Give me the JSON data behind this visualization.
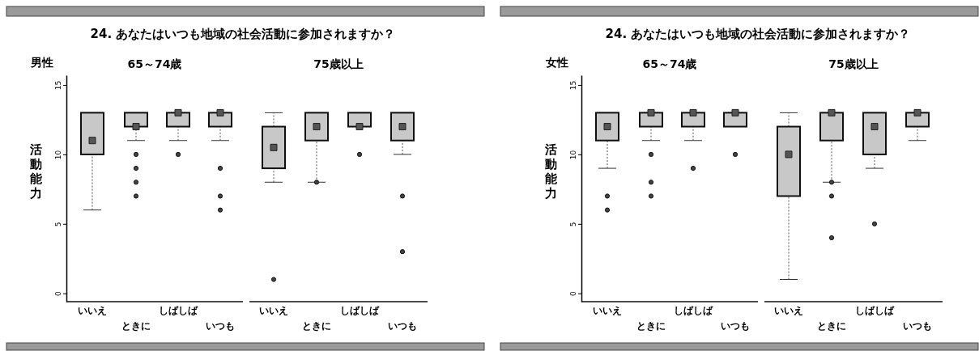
{
  "chart_data": [
    {
      "type": "box",
      "title": "24.  あなたはいつも地域の社会活動に参加されますか？",
      "ylabel": "活動能力",
      "annotations": [
        "男性",
        "65～74歳",
        "75歳以上"
      ],
      "categories": [
        "いいえ",
        "ときに",
        "しばしば",
        "いつも",
        "いいえ",
        "ときに",
        "しばしば",
        "いつも"
      ],
      "color": "#c8c8c8",
      "ylim": [
        -0.6,
        15.7
      ],
      "yticks": [
        0,
        5,
        10,
        15
      ],
      "boxes": [
        {
          "low": 6,
          "q1": 10,
          "median": 11,
          "q3": 13,
          "high": 13
        },
        {
          "low": 11,
          "q1": 12,
          "median": 12,
          "q3": 13,
          "high": 13,
          "outliers": [
            10,
            9,
            8,
            7
          ]
        },
        {
          "low": 11,
          "q1": 12,
          "median": 13,
          "q3": 13,
          "high": 13,
          "outliers": [
            10
          ]
        },
        {
          "low": 11,
          "q1": 12,
          "median": 13,
          "q3": 13,
          "high": 13,
          "outliers": [
            9,
            7,
            6
          ]
        },
        {
          "low": 8,
          "q1": 9,
          "median": 10.5,
          "q3": 12,
          "high": 13,
          "outliers": [
            1
          ]
        },
        {
          "low": 8,
          "q1": 11,
          "median": 12,
          "q3": 13,
          "high": 13,
          "outliers": [
            8
          ]
        },
        {
          "low": 12,
          "q1": 12,
          "median": 12,
          "q3": 13,
          "high": 13,
          "outliers": [
            10
          ]
        },
        {
          "low": 10,
          "q1": 11,
          "median": 12,
          "q3": 13,
          "high": 13,
          "outliers": [
            7,
            3
          ]
        }
      ]
    },
    {
      "type": "box",
      "title": "24.  あなたはいつも地域の社会活動に参加されますか？",
      "ylabel": "活動能力",
      "annotations": [
        "女性",
        "65～74歳",
        "75歳以上"
      ],
      "categories": [
        "いいえ",
        "ときに",
        "しばしば",
        "いつも",
        "いいえ",
        "ときに",
        "しばしば",
        "いつも"
      ],
      "color": "#c8c8c8",
      "ylim": [
        -0.6,
        15.7
      ],
      "yticks": [
        0,
        5,
        10,
        15
      ],
      "boxes": [
        {
          "low": 9,
          "q1": 11,
          "median": 12,
          "q3": 13,
          "high": 13,
          "outliers": [
            7,
            6
          ]
        },
        {
          "low": 11,
          "q1": 12,
          "median": 13,
          "q3": 13,
          "high": 13,
          "outliers": [
            10,
            8,
            7
          ]
        },
        {
          "low": 11,
          "q1": 12,
          "median": 13,
          "q3": 13,
          "high": 13,
          "outliers": [
            9
          ]
        },
        {
          "low": 12,
          "q1": 12,
          "median": 13,
          "q3": 13,
          "high": 13,
          "outliers": [
            10
          ]
        },
        {
          "low": 1,
          "q1": 7,
          "median": 10,
          "q3": 12,
          "high": 13
        },
        {
          "low": 8,
          "q1": 11,
          "median": 13,
          "q3": 13,
          "high": 13,
          "outliers": [
            8,
            7,
            4
          ]
        },
        {
          "low": 9,
          "q1": 10,
          "median": 12,
          "q3": 13,
          "high": 13,
          "outliers": [
            5
          ]
        },
        {
          "low": 11,
          "q1": 12,
          "median": 13,
          "q3": 13,
          "high": 13
        }
      ]
    }
  ]
}
